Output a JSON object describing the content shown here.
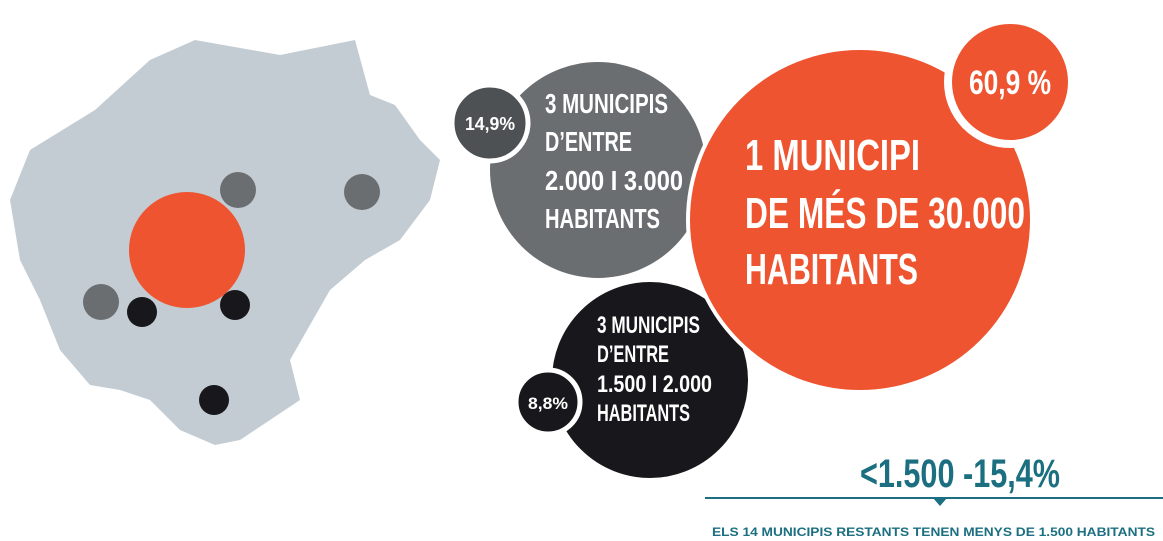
{
  "bubbles": [
    {
      "percent": "60,9 %",
      "lines": [
        "1 MUNICIPI",
        "DE MÉS DE 30.000",
        "HABITANTS"
      ]
    },
    {
      "percent": "14,9%",
      "lines": [
        "3 MUNICIPIS",
        "D’ENTRE",
        "2.000 I 3.000",
        "HABITANTS"
      ]
    },
    {
      "percent": "8,8%",
      "lines": [
        "3 MUNICIPIS",
        "D’ENTRE",
        "1.500 I 2.000",
        "HABITANTS"
      ]
    }
  ],
  "summary": {
    "headline": "<1.500 -15,4%",
    "caption": "ELS 14 MUNICIPIS RESTANTS TENEN MENYS DE 1.500 HABITANTS"
  }
}
